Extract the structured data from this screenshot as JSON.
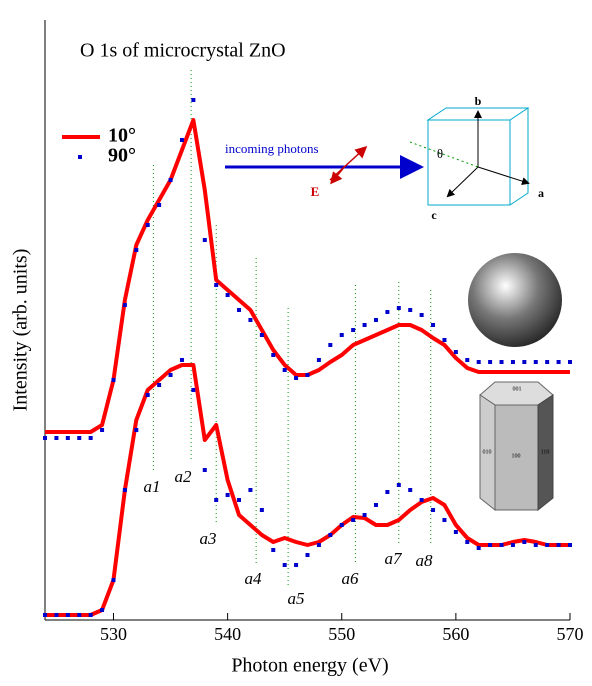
{
  "chart_data": {
    "type": "line",
    "title": "O 1s of microcrystal ZnO",
    "x_label": "Photon energy (eV)",
    "y_label": "Intensity (arb. units)",
    "xlim": [
      524,
      570
    ],
    "xticks": [
      530,
      540,
      550,
      560,
      570
    ],
    "ylim": [
      0,
      600
    ],
    "x": [
      524,
      525,
      526,
      527,
      528,
      529,
      530,
      531,
      532,
      533,
      534,
      535,
      536,
      537,
      538,
      539,
      540,
      541,
      542,
      543,
      544,
      545,
      546,
      547,
      548,
      549,
      550,
      551,
      552,
      553,
      554,
      555,
      556,
      557,
      558,
      559,
      560,
      561,
      562,
      563,
      564,
      565,
      566,
      567,
      568,
      569,
      570
    ],
    "series": [
      {
        "name": "10°",
        "color": "#ff0000",
        "style": "line",
        "traces": [
          [
            188,
            188,
            188,
            188,
            188,
            195,
            240,
            320,
            375,
            400,
            420,
            440,
            470,
            500,
            430,
            340,
            330,
            320,
            310,
            290,
            270,
            255,
            245,
            245,
            250,
            258,
            265,
            275,
            280,
            285,
            290,
            295,
            295,
            290,
            282,
            275,
            262,
            252,
            248,
            248,
            248,
            248,
            248,
            248,
            248,
            248,
            248
          ],
          [
            5,
            5,
            5,
            5,
            5,
            10,
            40,
            130,
            200,
            230,
            240,
            250,
            255,
            255,
            180,
            195,
            140,
            105,
            95,
            85,
            78,
            82,
            78,
            75,
            78,
            85,
            95,
            103,
            102,
            95,
            95,
            100,
            110,
            118,
            122,
            115,
            95,
            82,
            75,
            75,
            75,
            78,
            80,
            78,
            75,
            75,
            75
          ]
        ]
      },
      {
        "name": "90°",
        "color": "#0000cc",
        "style": "markers",
        "traces": [
          [
            182,
            182,
            182,
            182,
            182,
            190,
            240,
            315,
            370,
            395,
            415,
            440,
            480,
            520,
            380,
            335,
            325,
            310,
            300,
            285,
            265,
            250,
            242,
            245,
            260,
            275,
            285,
            290,
            295,
            300,
            308,
            312,
            310,
            305,
            295,
            280,
            268,
            260,
            258,
            258,
            258,
            258,
            258,
            258,
            258,
            258,
            258
          ],
          [
            5,
            5,
            5,
            5,
            5,
            10,
            40,
            130,
            190,
            225,
            235,
            245,
            260,
            230,
            150,
            120,
            125,
            120,
            130,
            110,
            70,
            55,
            55,
            65,
            75,
            85,
            95,
            100,
            105,
            115,
            128,
            135,
            130,
            120,
            110,
            100,
            88,
            78,
            72,
            75,
            75,
            75,
            78,
            75,
            75,
            75,
            75
          ]
        ]
      }
    ],
    "peaks": [
      {
        "value": 533.5,
        "label": "a1"
      },
      {
        "value": 536.8,
        "label": "a2"
      },
      {
        "value": 539,
        "label": "a3"
      },
      {
        "value": 542.5,
        "label": "a4"
      },
      {
        "value": 545.3,
        "label": "a5"
      },
      {
        "value": 551.2,
        "label": "a6"
      },
      {
        "value": 555,
        "label": "a7"
      },
      {
        "value": 557.8,
        "label": "a8"
      }
    ],
    "peak_color": "#009900",
    "annotations": [
      "incoming photons",
      "E",
      "θ",
      "a",
      "b",
      "c",
      "001",
      "100",
      "110",
      "010"
    ]
  }
}
